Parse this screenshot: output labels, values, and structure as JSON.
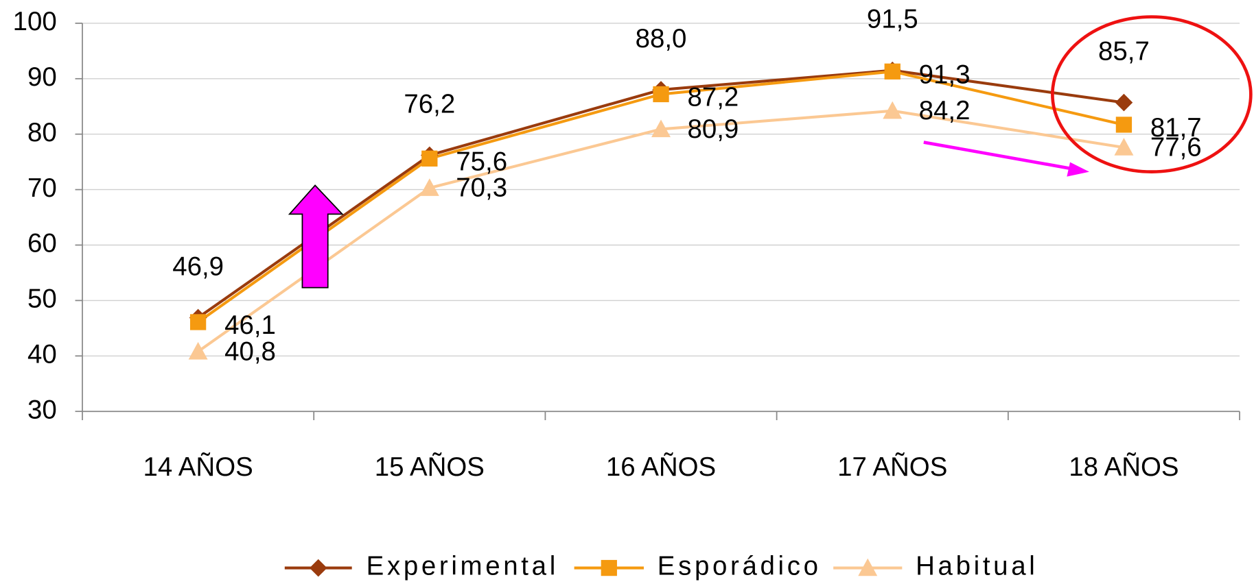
{
  "chart_data": {
    "type": "line",
    "categories": [
      "14 AÑOS",
      "15 AÑOS",
      "16 AÑOS",
      "17 AÑOS",
      "18 AÑOS"
    ],
    "series": [
      {
        "name": "Experimental",
        "color": "#9a3b0d",
        "marker": "diamond",
        "values": [
          46.9,
          76.2,
          88.0,
          91.5,
          85.7
        ],
        "value_labels": [
          "46,9",
          "76,2",
          "88,0",
          "91,5",
          "85,7"
        ]
      },
      {
        "name": "Esporádico",
        "color": "#f59a10",
        "marker": "square",
        "values": [
          46.1,
          75.6,
          87.2,
          91.3,
          81.7
        ],
        "value_labels": [
          "46,1",
          "75,6",
          "87,2",
          "91,3",
          "81,7"
        ]
      },
      {
        "name": "Habitual",
        "color": "#fbc893",
        "marker": "triangle",
        "values": [
          40.8,
          70.3,
          80.9,
          84.2,
          77.6
        ],
        "value_labels": [
          "40,8",
          "70,3",
          "80,9",
          "84,2",
          "77,6"
        ]
      }
    ],
    "ylim": [
      30,
      100
    ],
    "yticks": [
      30,
      40,
      50,
      60,
      70,
      80,
      90,
      100
    ],
    "grid": true,
    "legend": "bottom"
  }
}
